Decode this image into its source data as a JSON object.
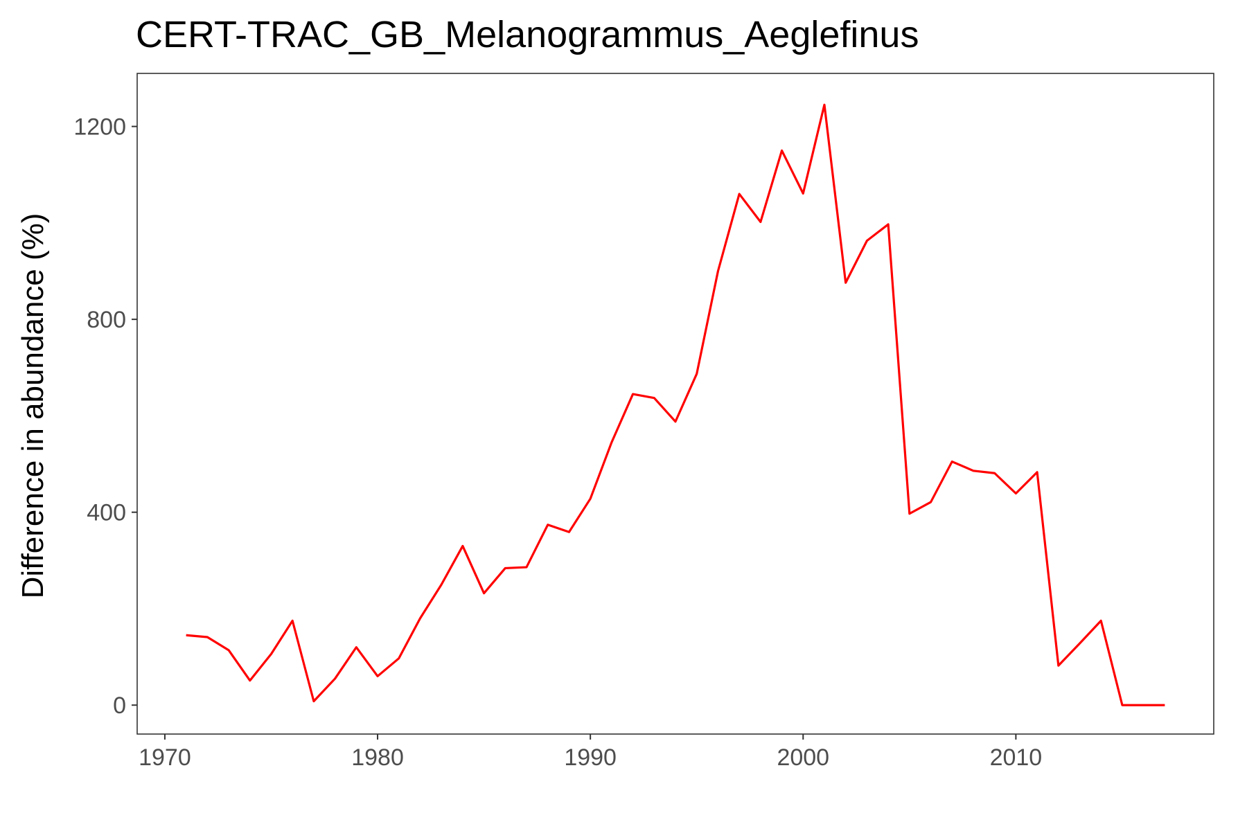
{
  "chart_data": {
    "type": "line",
    "title": "CERT-TRAC_GB_Melanogrammus_Aeglefinus",
    "xlabel": "",
    "ylabel": "Difference in abundance (%)",
    "xlim": [
      1968.7,
      2019.3
    ],
    "ylim": [
      -60,
      1310
    ],
    "x_ticks": [
      1970,
      1980,
      1990,
      2000,
      2010
    ],
    "y_ticks": [
      0,
      400,
      800,
      1200
    ],
    "grid": false,
    "legend": "none",
    "series": [
      {
        "color": "#ff0000",
        "x": [
          1971,
          1972,
          1973,
          1974,
          1975,
          1976,
          1977,
          1978,
          1979,
          1980,
          1981,
          1982,
          1983,
          1984,
          1985,
          1986,
          1987,
          1988,
          1989,
          1990,
          1991,
          1992,
          1993,
          1994,
          1995,
          1996,
          1997,
          1998,
          1999,
          2000,
          2001,
          2002,
          2003,
          2004,
          2005,
          2006,
          2007,
          2008,
          2009,
          2010,
          2011,
          2012,
          2013,
          2014,
          2015,
          2016,
          2017
        ],
        "y": [
          145,
          141,
          114,
          51,
          106,
          175,
          8,
          55,
          120,
          60,
          97,
          180,
          250,
          330,
          232,
          284,
          286,
          374,
          359,
          428,
          545,
          645,
          637,
          588,
          687,
          900,
          1060,
          1002,
          1150,
          1061,
          1245,
          876,
          963,
          997,
          397,
          421,
          505,
          486,
          481,
          439,
          483,
          82,
          128,
          175,
          0,
          0,
          0
        ]
      }
    ]
  }
}
